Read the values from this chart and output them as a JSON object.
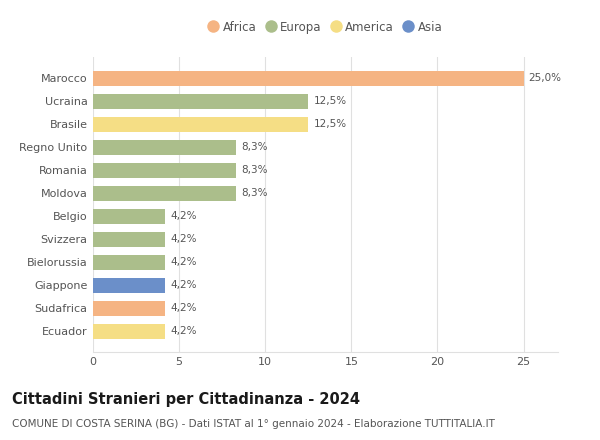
{
  "countries": [
    "Marocco",
    "Ucraina",
    "Brasile",
    "Regno Unito",
    "Romania",
    "Moldova",
    "Belgio",
    "Svizzera",
    "Bielorussia",
    "Giappone",
    "Sudafrica",
    "Ecuador"
  ],
  "values": [
    25.0,
    12.5,
    12.5,
    8.3,
    8.3,
    8.3,
    4.2,
    4.2,
    4.2,
    4.2,
    4.2,
    4.2
  ],
  "labels": [
    "25,0%",
    "12,5%",
    "12,5%",
    "8,3%",
    "8,3%",
    "8,3%",
    "4,2%",
    "4,2%",
    "4,2%",
    "4,2%",
    "4,2%",
    "4,2%"
  ],
  "continents": [
    "Africa",
    "Europa",
    "America",
    "Europa",
    "Europa",
    "Europa",
    "Europa",
    "Europa",
    "Europa",
    "Asia",
    "Africa",
    "America"
  ],
  "colors": {
    "Africa": "#F5B483",
    "Europa": "#ABBE8B",
    "America": "#F5DE85",
    "Asia": "#6B8FC9"
  },
  "legend_order": [
    "Africa",
    "Europa",
    "America",
    "Asia"
  ],
  "xlim": [
    0,
    27
  ],
  "xticks": [
    0,
    5,
    10,
    15,
    20,
    25
  ],
  "title": "Cittadini Stranieri per Cittadinanza - 2024",
  "subtitle": "COMUNE DI COSTA SERINA (BG) - Dati ISTAT al 1° gennaio 2024 - Elaborazione TUTTITALIA.IT",
  "background_color": "#ffffff",
  "grid_color": "#e0e0e0",
  "bar_height": 0.65,
  "title_fontsize": 10.5,
  "subtitle_fontsize": 7.5,
  "label_fontsize": 7.5,
  "tick_fontsize": 8,
  "legend_fontsize": 8.5
}
